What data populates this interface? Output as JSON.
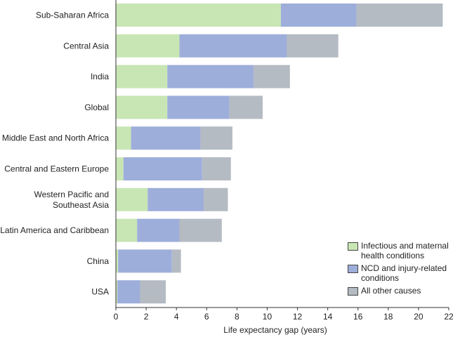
{
  "chart_data": {
    "type": "bar",
    "orientation": "horizontal",
    "stacked": true,
    "title": "",
    "xlabel": "Life expectancy gap (years)",
    "ylabel": "",
    "xlim": [
      0,
      22
    ],
    "xticks": [
      0,
      2,
      4,
      6,
      8,
      10,
      12,
      14,
      16,
      18,
      20,
      22
    ],
    "grid": false,
    "legend_position": "bottom-right",
    "categories": [
      "Sub-Saharan Africa",
      "Central Asia",
      "India",
      "Global",
      "Middle East and North Africa",
      "Central and Eastern Europe",
      "Western Pacific and Southeast Asia",
      "Latin America and Caribbean",
      "China",
      "USA"
    ],
    "category_label_lines": [
      [
        "Sub-Saharan Africa"
      ],
      [
        "Central Asia"
      ],
      [
        "India"
      ],
      [
        "Global"
      ],
      [
        "Middle East and North Africa"
      ],
      [
        "Central and Eastern Europe"
      ],
      [
        "Western Pacific and",
        "Southeast Asia"
      ],
      [
        "Latin America and Caribbean"
      ],
      [
        "China"
      ],
      [
        "USA"
      ]
    ],
    "series": [
      {
        "name": "Infectious and maternal health conditions",
        "legend_lines": [
          "Infectious and maternal",
          "health conditions"
        ],
        "color": "#c8e6b4",
        "values": [
          10.9,
          4.2,
          3.4,
          3.4,
          1.0,
          0.5,
          2.1,
          1.4,
          0.15,
          0.1
        ]
      },
      {
        "name": "NCD and injury-related conditions",
        "legend_lines": [
          "NCD and injury-related",
          "conditions"
        ],
        "color": "#9eaedb",
        "values": [
          5.0,
          7.1,
          5.7,
          4.1,
          4.6,
          5.2,
          3.7,
          2.8,
          3.55,
          1.5
        ]
      },
      {
        "name": "All other causes",
        "legend_lines": [
          "All other causes"
        ],
        "color": "#b5bbc3",
        "values": [
          5.7,
          3.4,
          2.4,
          2.2,
          2.1,
          1.9,
          1.6,
          2.8,
          0.6,
          1.7
        ]
      }
    ]
  }
}
